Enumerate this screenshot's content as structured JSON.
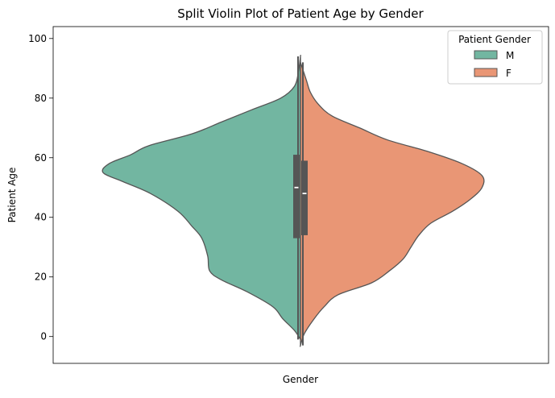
{
  "chart_data": {
    "type": "violin",
    "title": "Split Violin Plot of Patient Age by Gender",
    "xlabel": "Gender",
    "ylabel": "Patient Age",
    "ylim": [
      -9,
      104
    ],
    "yticks": [
      0,
      20,
      40,
      60,
      80,
      100
    ],
    "x_tick_labels": [],
    "legend": {
      "title": "Patient Gender",
      "position": "top-right"
    },
    "series": [
      {
        "name": "M",
        "color": "#72b6a1",
        "side": "left",
        "range": [
          -1,
          94
        ],
        "density_profile": [
          {
            "age": -1,
            "width": 0.0
          },
          {
            "age": 2,
            "width": 0.03
          },
          {
            "age": 6,
            "width": 0.09
          },
          {
            "age": 10,
            "width": 0.14
          },
          {
            "age": 15,
            "width": 0.27
          },
          {
            "age": 19,
            "width": 0.4
          },
          {
            "age": 22,
            "width": 0.46
          },
          {
            "age": 27,
            "width": 0.47
          },
          {
            "age": 33,
            "width": 0.5
          },
          {
            "age": 37,
            "width": 0.55
          },
          {
            "age": 42,
            "width": 0.62
          },
          {
            "age": 48,
            "width": 0.76
          },
          {
            "age": 52,
            "width": 0.9
          },
          {
            "age": 55,
            "width": 1.0
          },
          {
            "age": 58,
            "width": 0.97
          },
          {
            "age": 61,
            "width": 0.86
          },
          {
            "age": 64,
            "width": 0.77
          },
          {
            "age": 68,
            "width": 0.55
          },
          {
            "age": 72,
            "width": 0.4
          },
          {
            "age": 76,
            "width": 0.25
          },
          {
            "age": 80,
            "width": 0.1
          },
          {
            "age": 84,
            "width": 0.03
          },
          {
            "age": 89,
            "width": 0.01
          },
          {
            "age": 94,
            "width": 0.0
          }
        ],
        "box": {
          "q1": 33,
          "median": 50,
          "q3": 61
        },
        "whisker": [
          -1,
          94
        ]
      },
      {
        "name": "F",
        "color": "#e99675",
        "side": "right",
        "range": [
          -3,
          92
        ],
        "density_profile": [
          {
            "age": -3,
            "width": 0.0
          },
          {
            "age": 1,
            "width": 0.02
          },
          {
            "age": 6,
            "width": 0.07
          },
          {
            "age": 10,
            "width": 0.12
          },
          {
            "age": 14,
            "width": 0.19
          },
          {
            "age": 18,
            "width": 0.36
          },
          {
            "age": 22,
            "width": 0.45
          },
          {
            "age": 26,
            "width": 0.52
          },
          {
            "age": 30,
            "width": 0.56
          },
          {
            "age": 34,
            "width": 0.6
          },
          {
            "age": 38,
            "width": 0.66
          },
          {
            "age": 42,
            "width": 0.77
          },
          {
            "age": 46,
            "width": 0.86
          },
          {
            "age": 50,
            "width": 0.92
          },
          {
            "age": 54,
            "width": 0.92
          },
          {
            "age": 58,
            "width": 0.82
          },
          {
            "age": 62,
            "width": 0.65
          },
          {
            "age": 66,
            "width": 0.44
          },
          {
            "age": 70,
            "width": 0.3
          },
          {
            "age": 74,
            "width": 0.16
          },
          {
            "age": 78,
            "width": 0.09
          },
          {
            "age": 82,
            "width": 0.05
          },
          {
            "age": 86,
            "width": 0.03
          },
          {
            "age": 92,
            "width": 0.0
          }
        ],
        "box": {
          "q1": 34,
          "median": 48,
          "q3": 59
        },
        "whisker": [
          -3,
          92
        ]
      }
    ]
  }
}
